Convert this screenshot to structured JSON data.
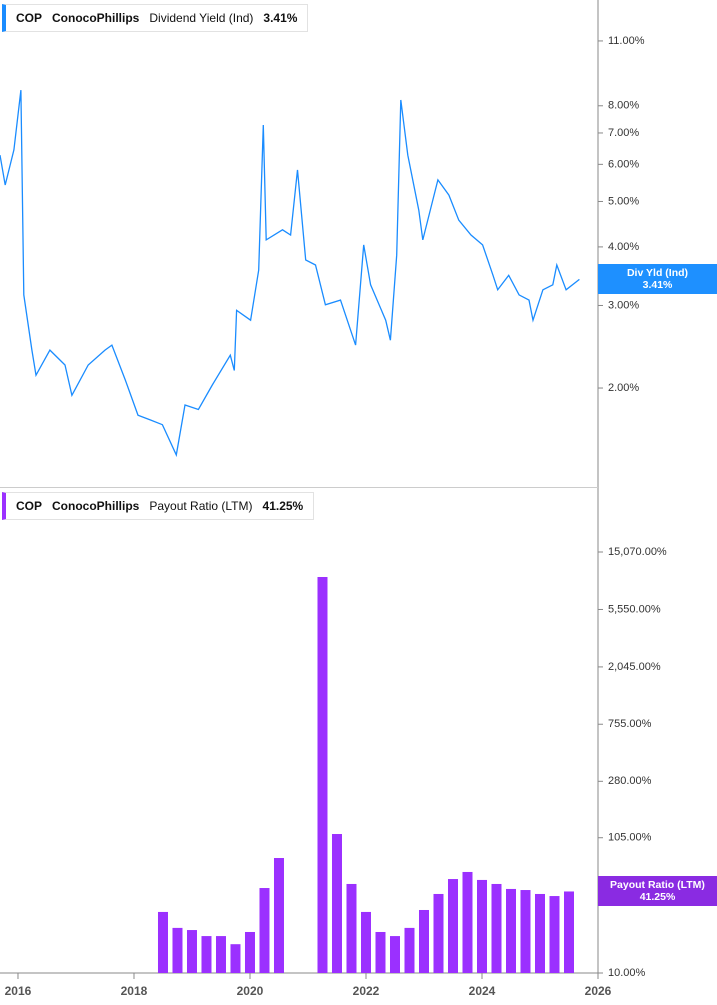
{
  "chart_data": [
    {
      "type": "line",
      "ticker": "COP",
      "company": "ConocoPhillips",
      "series": [
        {
          "name": "Dividend Yield (Ind)",
          "color": "#1a8cff",
          "x": [
            2015.69,
            2015.78,
            2015.93,
            2016.05,
            2016.1,
            2016.24,
            2016.31,
            2016.55,
            2016.81,
            2016.93,
            2017.21,
            2017.5,
            2017.62,
            2017.85,
            2018.07,
            2018.28,
            2018.49,
            2018.73,
            2018.88,
            2019.11,
            2019.35,
            2019.66,
            2019.73,
            2019.77,
            2020.01,
            2020.15,
            2020.23,
            2020.28,
            2020.56,
            2020.7,
            2020.82,
            2020.96,
            2021.13,
            2021.3,
            2021.56,
            2021.82,
            2021.96,
            2022.08,
            2022.34,
            2022.42,
            2022.53,
            2022.6,
            2022.72,
            2022.91,
            2022.98,
            2023.24,
            2023.43,
            2023.6,
            2023.81,
            2024.01,
            2024.19,
            2024.27,
            2024.46,
            2024.64,
            2024.81,
            2024.88,
            2025.05,
            2025.22,
            2025.29,
            2025.45,
            2025.68
          ],
          "values": [
            6.28,
            5.42,
            6.44,
            8.64,
            3.16,
            2.41,
            2.13,
            2.41,
            2.24,
            1.93,
            2.24,
            2.41,
            2.47,
            2.08,
            1.75,
            1.71,
            1.67,
            1.44,
            1.84,
            1.8,
            2.03,
            2.35,
            2.18,
            2.93,
            2.79,
            3.57,
            7.28,
            4.14,
            4.35,
            4.24,
            5.84,
            3.75,
            3.66,
            3.01,
            3.08,
            2.47,
            4.04,
            3.32,
            2.79,
            2.53,
            3.84,
            8.23,
            6.28,
            4.79,
            4.14,
            5.56,
            5.16,
            4.56,
            4.24,
            4.04,
            3.48,
            3.24,
            3.48,
            3.16,
            3.08,
            2.79,
            3.24,
            3.32,
            3.66,
            3.24,
            3.41
          ]
        }
      ],
      "current": {
        "value": 3.41,
        "label": "3.41%"
      },
      "annotation": "Div Yld (Ind)",
      "log_scale": true,
      "xlim": [
        2015.69,
        2026.0
      ],
      "ylim": [
        1.23,
        13.45
      ],
      "yticks": [
        {
          "value": 2,
          "label": "2.00%"
        },
        {
          "value": 3,
          "label": "3.00%"
        },
        {
          "value": 4,
          "label": "4.00%"
        },
        {
          "value": 5,
          "label": "5.00%"
        },
        {
          "value": 6,
          "label": "6.00%"
        },
        {
          "value": 7,
          "label": "7.00%"
        },
        {
          "value": 8,
          "label": "8.00%"
        },
        {
          "value": 11,
          "label": "11.00%"
        }
      ]
    },
    {
      "type": "bar",
      "ticker": "COP",
      "company": "ConocoPhillips",
      "series": [
        {
          "name": "Payout Ratio (LTM)",
          "color": "#9b30ff",
          "x": [
            2018.5,
            2018.75,
            2019.0,
            2019.25,
            2019.5,
            2019.75,
            2020.0,
            2020.25,
            2020.5,
            2020.75,
            2021.0,
            2021.25,
            2021.5,
            2021.75,
            2022.0,
            2022.25,
            2022.5,
            2022.75,
            2023.0,
            2023.25,
            2023.5,
            2023.75,
            2024.0,
            2024.25,
            2024.5,
            2024.75,
            2025.0,
            2025.25,
            2025.5
          ],
          "values": [
            28.9,
            21.9,
            21.1,
            19.0,
            19.0,
            16.5,
            20.4,
            43.8,
            73.8,
            null,
            null,
            9760,
            112,
            47.0,
            28.9,
            20.4,
            19.0,
            21.9,
            29.9,
            39.5,
            51.2,
            57.9,
            50.4,
            47.0,
            43.1,
            42.3,
            39.5,
            38.1,
            41.25
          ]
        }
      ],
      "current": {
        "value": 41.25,
        "label": "41.25%"
      },
      "log_scale": true,
      "xlim": [
        2015.69,
        2026.0
      ],
      "ylim": [
        10,
        44280
      ],
      "xticks": [
        2016,
        2018,
        2020,
        2022,
        2024,
        2026
      ],
      "yticks": [
        {
          "value": 10,
          "label": "10.00%"
        },
        {
          "value": 105,
          "label": "105.00%"
        },
        {
          "value": 280,
          "label": "280.00%"
        },
        {
          "value": 755,
          "label": "755.00%"
        },
        {
          "value": 2045,
          "label": "2,045.00%"
        },
        {
          "value": 5550,
          "label": "5,550.00%"
        },
        {
          "value": 15070,
          "label": "15,070.00%"
        }
      ]
    }
  ]
}
